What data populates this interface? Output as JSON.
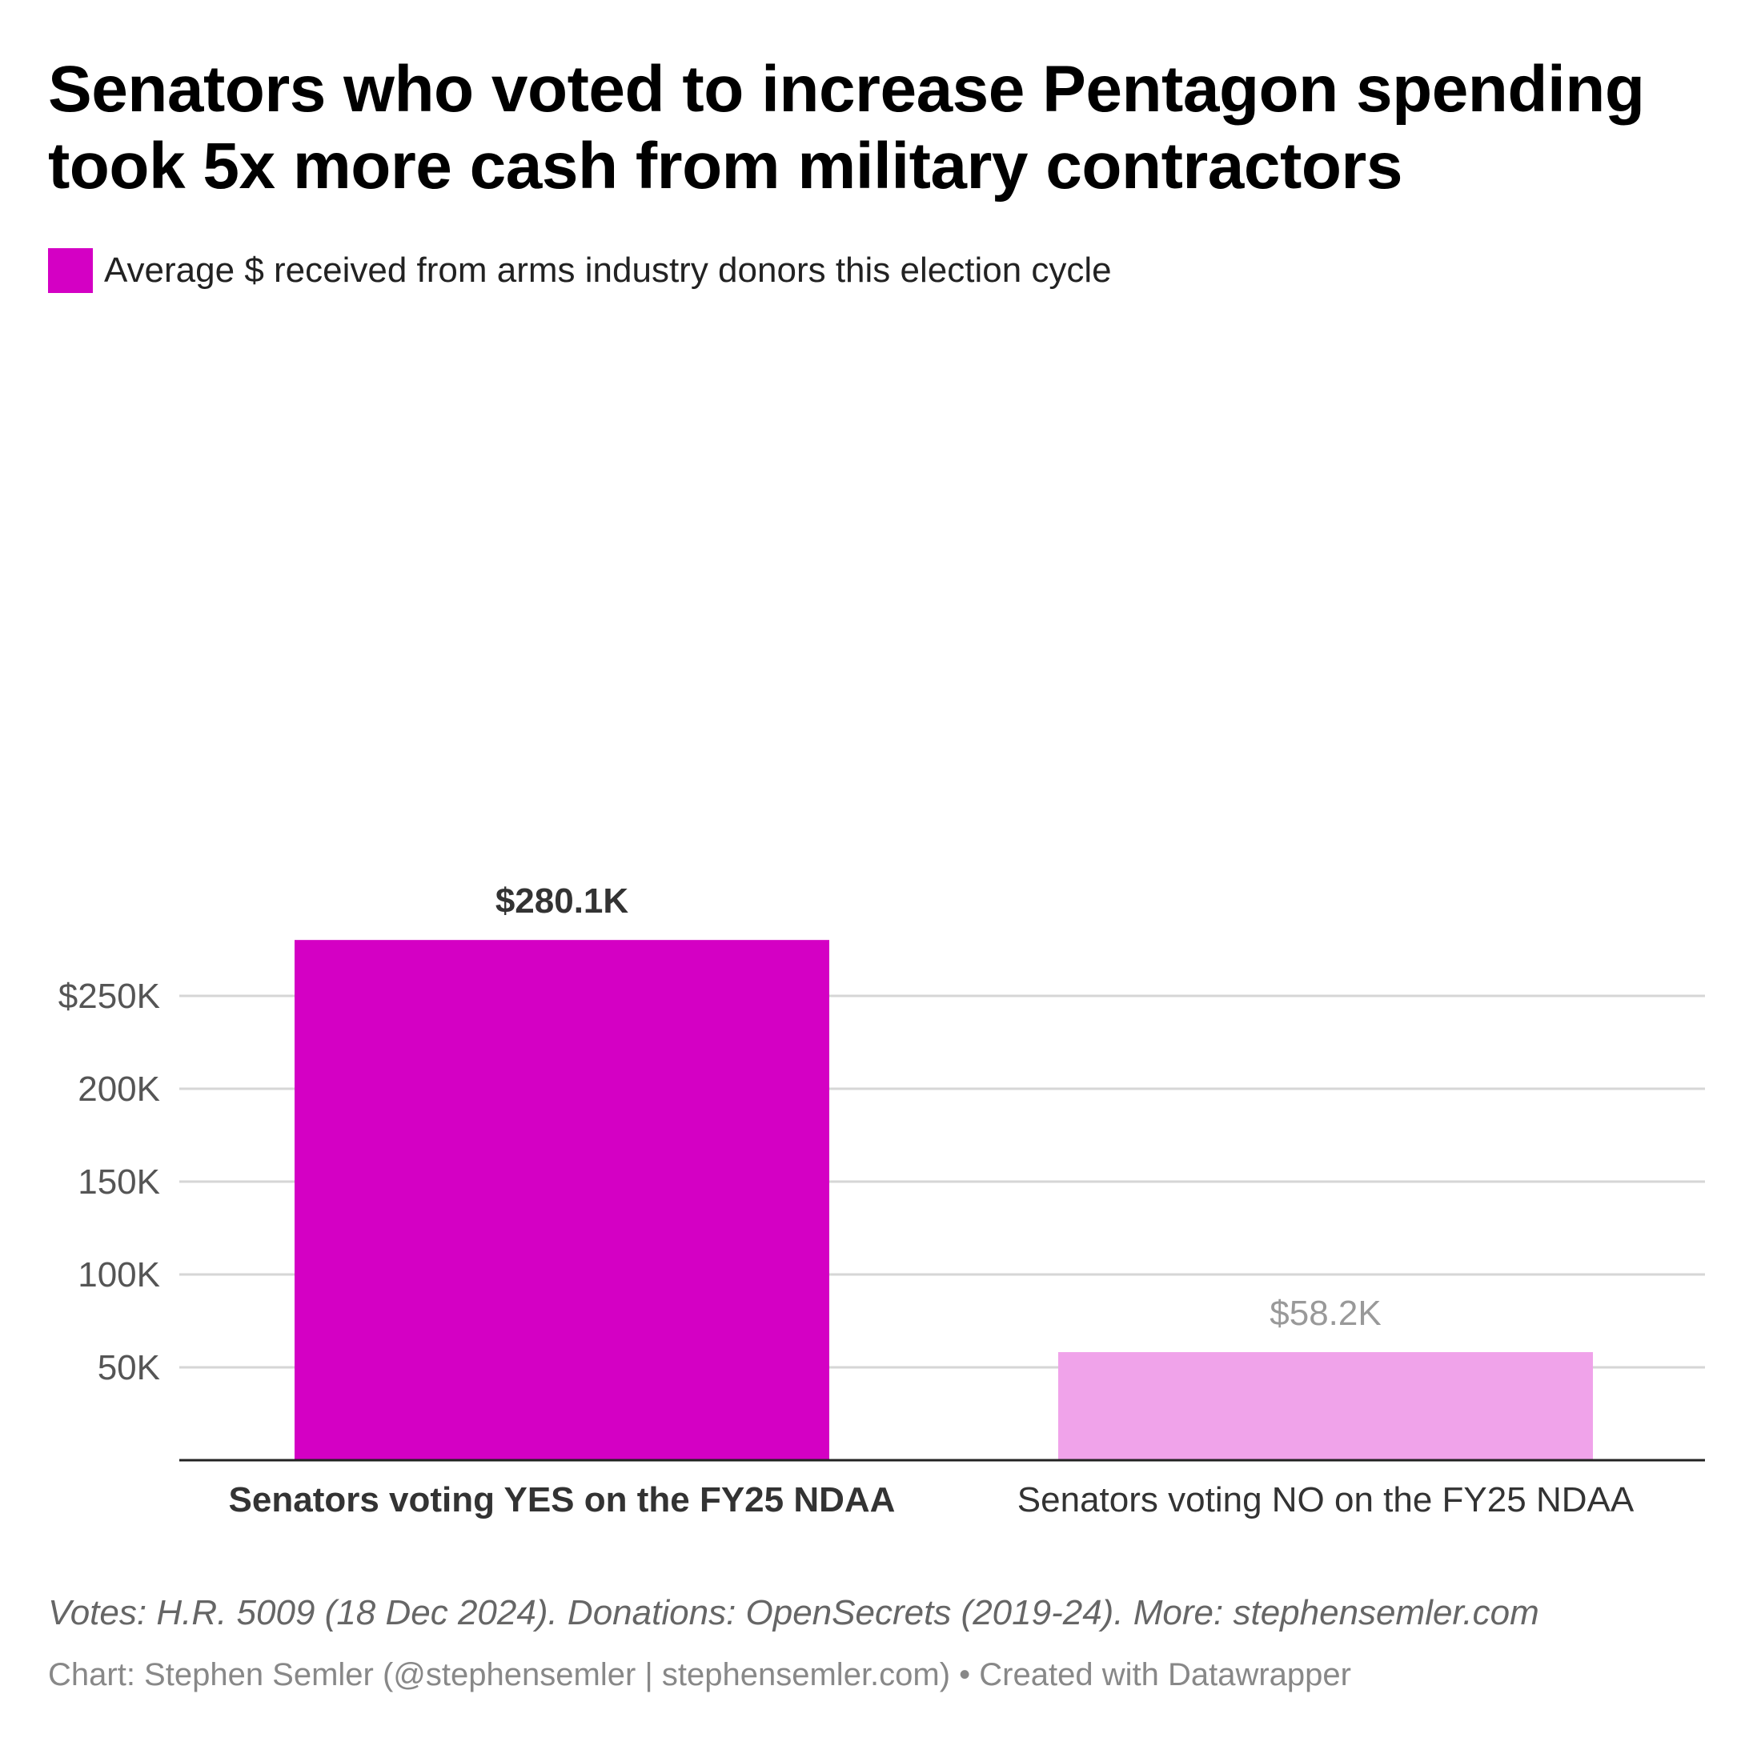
{
  "title_lines": [
    "Senators who voted to increase Pentagon spending",
    "took 5x more cash from military contractors"
  ],
  "legend": {
    "label": "Average $ received from arms industry donors this election cycle",
    "color": "#d400c4"
  },
  "chart_data": {
    "type": "bar",
    "categories": [
      "Senators voting YES on the FY25 NDAA",
      "Senators voting NO on the FY25 NDAA"
    ],
    "values": [
      280100,
      58200
    ],
    "value_labels": [
      "$280.1K",
      "$58.2K"
    ],
    "bar_colors": [
      "#d400c4",
      "#f0a3ea"
    ],
    "emphasis": [
      true,
      false
    ],
    "ylim": [
      0,
      300000
    ],
    "yticks": [
      {
        "value": 250000,
        "label": "$250K"
      },
      {
        "value": 200000,
        "label": "200K"
      },
      {
        "value": 150000,
        "label": "150K"
      },
      {
        "value": 100000,
        "label": "100K"
      },
      {
        "value": 50000,
        "label": "50K"
      }
    ],
    "grid": true,
    "legend_position": "top-left"
  },
  "notes": "Votes: H.R. 5009 (18 Dec 2024). Donations: OpenSecrets (2019-24). More: stephensemler.com",
  "byline": "Chart: Stephen Semler (@stephensemler | stephensemler.com) • Created with Datawrapper"
}
